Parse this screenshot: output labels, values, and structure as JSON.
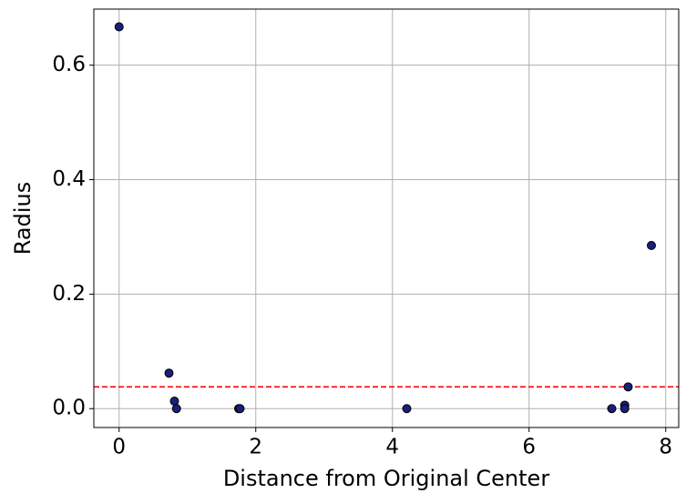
{
  "chart_data": {
    "type": "scatter",
    "x_label": "Distance from Original Center",
    "y_label": "Radius",
    "x": [
      0,
      0.73,
      0.81,
      0.84,
      1.75,
      1.77,
      4.21,
      7.21,
      7.4,
      7.4,
      7.45,
      7.79
    ],
    "values": [
      0.667,
      0.062,
      0.013,
      0.0,
      0.0,
      0.0,
      0.0,
      0.0,
      0.006,
      0.0,
      0.038,
      0.285
    ],
    "color": "#1a1f7a",
    "edge_color": "#000000",
    "xlim": [
      -0.37,
      8.19
    ],
    "ylim": [
      -0.033,
      0.698
    ],
    "xticks": [
      0,
      2,
      4,
      6,
      8
    ],
    "yticks": [
      {
        "value": 0,
        "label": "0.0"
      },
      {
        "value": 0.2,
        "label": "0.2"
      },
      {
        "value": 0.4,
        "label": "0.4"
      },
      {
        "value": 0.6,
        "label": "0.6"
      }
    ],
    "grid": true,
    "threshold_line": {
      "value": 0.038,
      "color": "#ff0000",
      "style": "dashed"
    }
  }
}
